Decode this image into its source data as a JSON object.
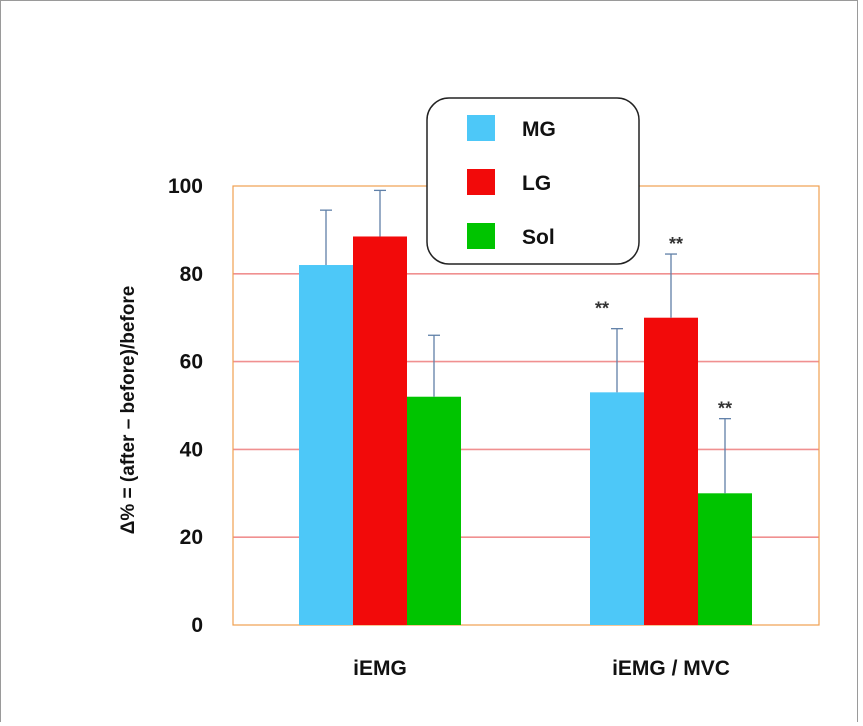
{
  "chart_data": {
    "type": "bar",
    "categories": [
      "iEMG",
      "iEMG / MVC"
    ],
    "series": [
      {
        "name": "MG",
        "color": "#4dc8f8",
        "values": [
          82,
          53
        ],
        "errors": [
          12.5,
          14.5
        ]
      },
      {
        "name": "LG",
        "color": "#f20a0a",
        "values": [
          88.5,
          70
        ],
        "errors": [
          10.5,
          14.5
        ]
      },
      {
        "name": "Sol",
        "color": "#00c400",
        "values": [
          52,
          30
        ],
        "errors": [
          14,
          17
        ]
      }
    ],
    "ylabel": "Δ% = (after – before)/before",
    "ylim": [
      0,
      100
    ],
    "yticks": [
      0,
      20,
      40,
      60,
      80,
      100
    ],
    "significance": [
      {
        "series": "MG",
        "category": "iEMG / MVC",
        "label": "**"
      },
      {
        "series": "LG",
        "category": "iEMG / MVC",
        "label": "**"
      },
      {
        "series": "Sol",
        "category": "iEMG / MVC",
        "label": "**"
      }
    ],
    "grid": true,
    "grid_color": "#f09090",
    "frame_color": "#f0a050",
    "errorbar_color": "#6080a8",
    "legend_position": "top-center"
  }
}
